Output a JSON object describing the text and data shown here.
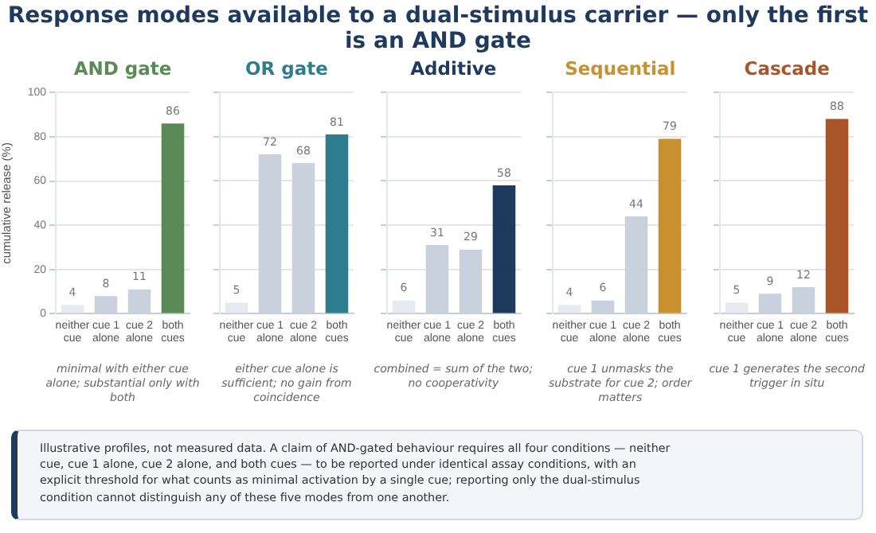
{
  "chart_data": [
    {
      "type": "other",
      "title": "Response modes available to a dual-stimulus carrier — only the first is an AND gate"
    },
    {
      "type": "bar",
      "title": "AND gate",
      "ylabel": "cumulative release (%)",
      "categories": [
        "neither cue",
        "cue 1 alone",
        "cue 2 alone",
        "both cues"
      ],
      "values": [
        4,
        8,
        11,
        86
      ],
      "colors": [
        "#e6eaf0",
        "#c9d1dc",
        "#c9d1dc",
        "#5a8a55"
      ],
      "ylim": [
        0,
        100
      ],
      "yticks": [
        0,
        20,
        40,
        60,
        80,
        100
      ],
      "grid": "y",
      "data_labels": true,
      "annotations": [
        "minimal with either cue alone; substantial only with both"
      ]
    },
    {
      "type": "bar",
      "title": "OR gate",
      "categories": [
        "neither cue",
        "cue 1 alone",
        "cue 2 alone",
        "both cues"
      ],
      "values": [
        5,
        72,
        68,
        81
      ],
      "colors": [
        "#e6eaf0",
        "#c9d1dc",
        "#c9d1dc",
        "#2e7d8e"
      ],
      "ylim": [
        0,
        100
      ],
      "yticks": [
        0,
        20,
        40,
        60,
        80,
        100
      ],
      "grid": "y",
      "tick_labels": "x",
      "data_labels": true,
      "annotations": [
        "either cue alone is sufficient; no gain from coincidence"
      ]
    },
    {
      "type": "bar",
      "title": "Additive",
      "categories": [
        "neither cue",
        "cue 1 alone",
        "cue 2 alone",
        "both cues"
      ],
      "values": [
        6,
        31,
        29,
        58
      ],
      "colors": [
        "#e6eaf0",
        "#c9d1dc",
        "#c9d1dc",
        "#1e3a5f"
      ],
      "ylim": [
        0,
        100
      ],
      "yticks": [
        0,
        20,
        40,
        60,
        80,
        100
      ],
      "grid": "y",
      "tick_labels": "x",
      "data_labels": true,
      "annotations": [
        "combined = sum of the two; no cooperativity"
      ]
    },
    {
      "type": "bar",
      "title": "Sequential",
      "categories": [
        "neither cue",
        "cue 1 alone",
        "cue 2 alone",
        "both cues"
      ],
      "values": [
        4,
        6,
        44,
        79
      ],
      "colors": [
        "#e6eaf0",
        "#c9d1dc",
        "#c9d1dc",
        "#c8902e"
      ],
      "ylim": [
        0,
        100
      ],
      "yticks": [
        0,
        20,
        40,
        60,
        80,
        100
      ],
      "grid": "y",
      "tick_labels": "x",
      "data_labels": true,
      "annotations": [
        "cue 1 unmasks the substrate for cue 2; order matters"
      ]
    },
    {
      "type": "bar",
      "title": "Cascade",
      "categories": [
        "neither cue",
        "cue 1 alone",
        "cue 2 alone",
        "both cues"
      ],
      "values": [
        5,
        9,
        12,
        88
      ],
      "colors": [
        "#e6eaf0",
        "#c9d1dc",
        "#c9d1dc",
        "#a9552a"
      ],
      "ylim": [
        0,
        100
      ],
      "yticks": [
        0,
        20,
        40,
        60,
        80,
        100
      ],
      "grid": "y",
      "tick_labels": "x",
      "data_labels": true,
      "annotations": [
        "cue 1 generates the second trigger in situ"
      ]
    },
    {
      "type": "other",
      "annotations": [
        "Illustrative profiles, not measured data. A claim of AND-gated behaviour requires all four conditions — neither cue, cue 1 alone, cue 2 alone, and both cues — to be reported under identical assay conditions, with an explicit threshold for what counts as minimal activation by a single cue; reporting only the dual-stimulus condition cannot distinguish any of these five modes from one another."
      ]
    }
  ]
}
